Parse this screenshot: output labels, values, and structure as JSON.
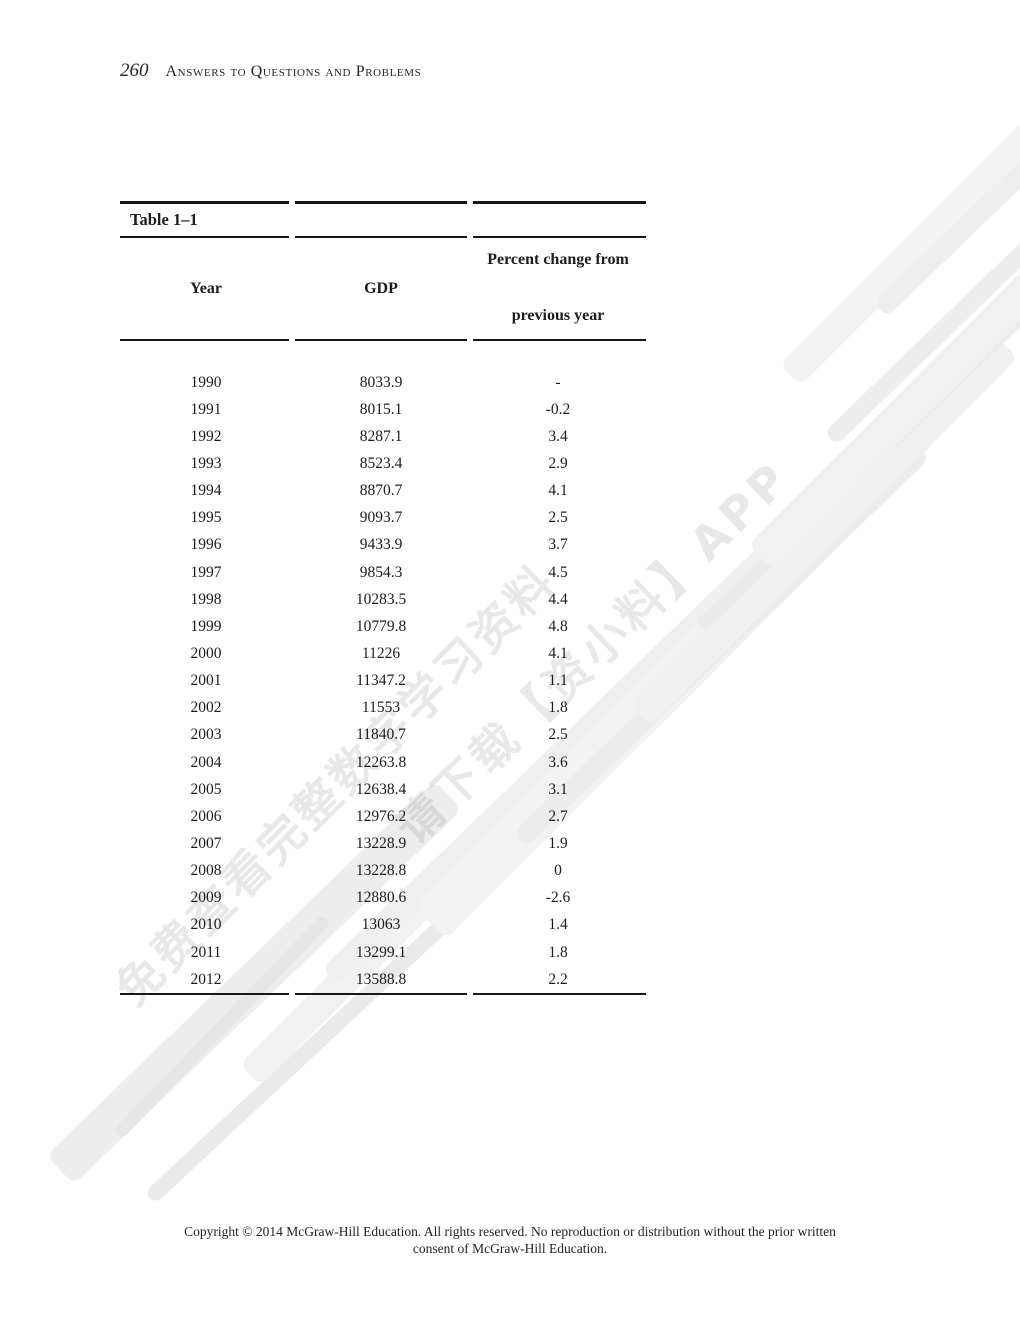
{
  "page_header": {
    "page_number": "260",
    "title": "Answers to Questions and Problems"
  },
  "table": {
    "caption": "Table 1–1",
    "headers": {
      "year": "Year",
      "gdp": "GDP",
      "pct_line1": "Percent change from",
      "pct_line2": "previous year"
    },
    "rows": [
      [
        "1990",
        "8033.9",
        "-"
      ],
      [
        "1991",
        "8015.1",
        "-0.2"
      ],
      [
        "1992",
        "8287.1",
        "3.4"
      ],
      [
        "1993",
        "8523.4",
        "2.9"
      ],
      [
        "1994",
        "8870.7",
        "4.1"
      ],
      [
        "1995",
        "9093.7",
        "2.5"
      ],
      [
        "1996",
        "9433.9",
        "3.7"
      ],
      [
        "1997",
        "9854.3",
        "4.5"
      ],
      [
        "1998",
        "10283.5",
        "4.4"
      ],
      [
        "1999",
        "10779.8",
        "4.8"
      ],
      [
        "2000",
        "11226",
        "4.1"
      ],
      [
        "2001",
        "11347.2",
        "1.1"
      ],
      [
        "2002",
        "11553",
        "1.8"
      ],
      [
        "2003",
        "11840.7",
        "2.5"
      ],
      [
        "2004",
        "12263.8",
        "3.6"
      ],
      [
        "2005",
        "12638.4",
        "3.1"
      ],
      [
        "2006",
        "12976.2",
        "2.7"
      ],
      [
        "2007",
        "13228.9",
        "1.9"
      ],
      [
        "2008",
        "13228.8",
        "0"
      ],
      [
        "2009",
        "12880.6",
        "-2.6"
      ],
      [
        "2010",
        "13063",
        "1.4"
      ],
      [
        "2011",
        "13299.1",
        "1.8"
      ],
      [
        "2012",
        "13588.8",
        "2.2"
      ]
    ]
  },
  "watermark": {
    "line1": "免费查看完整数字学习资料",
    "line2": "请下载【资小料】APP"
  },
  "footer": {
    "line1": "Copyright © 2014 McGraw-Hill Education. All rights reserved. No reproduction or distribution without the prior written",
    "line2": "consent of McGraw-Hill Education."
  }
}
